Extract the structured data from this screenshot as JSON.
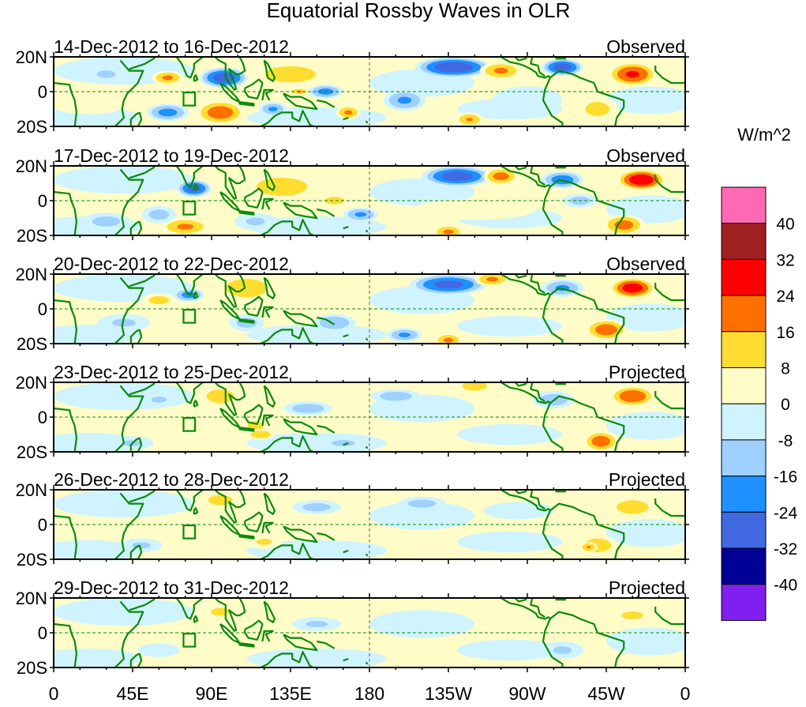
{
  "chart_data": {
    "type": "heatmap",
    "title": "Equatorial Rossby Waves in OLR",
    "units_label": "W/m^2",
    "x_ticks": [
      "0",
      "45E",
      "90E",
      "135E",
      "180",
      "135W",
      "90W",
      "45W",
      "0"
    ],
    "x_tick_lons": [
      0,
      45,
      90,
      135,
      180,
      225,
      270,
      315,
      360
    ],
    "y_ticks": [
      "20N",
      "0",
      "20S"
    ],
    "xlim": [
      0,
      360
    ],
    "ylim": [
      -20,
      20
    ],
    "colorbar": {
      "labels": [
        "40",
        "32",
        "24",
        "16",
        "8",
        "0",
        "-8",
        "-16",
        "-24",
        "-32",
        "-40"
      ],
      "levels": [
        -40,
        -32,
        -24,
        -16,
        -8,
        0,
        8,
        16,
        24,
        32,
        40
      ],
      "colors": [
        "#8020f0",
        "#000096",
        "#4169e1",
        "#1e90ff",
        "#a0d0ff",
        "#d0f4ff",
        "#fffcc8",
        "#ffdd30",
        "#ff7000",
        "#ff0000",
        "#a02020",
        "#ff69b4"
      ]
    },
    "panels": [
      {
        "date_range": "14-Dec-2012 to 16-Dec-2012",
        "status": "Observed",
        "anomalies": [
          [
            20,
            -5,
            25,
            8,
            4
          ],
          [
            65,
            8,
            9,
            4,
            18
          ],
          [
            97,
            8,
            14,
            6,
            -30
          ],
          [
            95,
            -12,
            14,
            7,
            22
          ],
          [
            135,
            10,
            25,
            8,
            12
          ],
          [
            140,
            0,
            6,
            2,
            17
          ],
          [
            168,
            -12,
            7,
            4,
            18
          ],
          [
            65,
            -12,
            12,
            5,
            -20
          ],
          [
            125,
            -10,
            8,
            4,
            -18
          ],
          [
            155,
            0,
            10,
            4,
            -20
          ],
          [
            200,
            -5,
            12,
            6,
            -18
          ],
          [
            228,
            14,
            22,
            6,
            -32
          ],
          [
            255,
            12,
            12,
            5,
            18
          ],
          [
            290,
            14,
            12,
            5,
            -30
          ],
          [
            330,
            10,
            14,
            7,
            26
          ],
          [
            237,
            -16,
            8,
            4,
            17
          ],
          [
            310,
            -10,
            12,
            7,
            12
          ],
          [
            270,
            -5,
            20,
            8,
            -6
          ],
          [
            30,
            10,
            12,
            5,
            -10
          ]
        ]
      },
      {
        "date_range": "17-Dec-2012 to 19-Dec-2012",
        "status": "Observed",
        "anomalies": [
          [
            80,
            7,
            10,
            5,
            -28
          ],
          [
            75,
            -15,
            14,
            5,
            18
          ],
          [
            130,
            8,
            25,
            9,
            12
          ],
          [
            160,
            0,
            8,
            3,
            16
          ],
          [
            60,
            -8,
            10,
            5,
            -12
          ],
          [
            175,
            -8,
            10,
            4,
            -18
          ],
          [
            230,
            14,
            20,
            6,
            -30
          ],
          [
            255,
            14,
            10,
            5,
            20
          ],
          [
            290,
            12,
            12,
            5,
            -22
          ],
          [
            335,
            12,
            14,
            6,
            32
          ],
          [
            325,
            -14,
            12,
            6,
            20
          ],
          [
            225,
            -18,
            9,
            4,
            18
          ],
          [
            240,
            -5,
            35,
            6,
            6
          ],
          [
            300,
            0,
            10,
            4,
            -12
          ],
          [
            30,
            -12,
            14,
            5,
            -12
          ],
          [
            115,
            -12,
            12,
            5,
            -10
          ]
        ]
      },
      {
        "date_range": "20-Dec-2012 to 22-Dec-2012",
        "status": "Observed",
        "anomalies": [
          [
            77,
            8,
            9,
            4,
            -20
          ],
          [
            110,
            12,
            18,
            8,
            14
          ],
          [
            110,
            -8,
            10,
            5,
            -12
          ],
          [
            225,
            14,
            22,
            6,
            -28
          ],
          [
            250,
            17,
            10,
            4,
            18
          ],
          [
            290,
            12,
            12,
            5,
            -18
          ],
          [
            330,
            12,
            13,
            6,
            30
          ],
          [
            315,
            -12,
            12,
            6,
            22
          ],
          [
            225,
            -18,
            8,
            4,
            18
          ],
          [
            200,
            -15,
            10,
            4,
            -18
          ],
          [
            160,
            -8,
            12,
            5,
            -16
          ],
          [
            40,
            -8,
            15,
            5,
            -10
          ],
          [
            60,
            5,
            10,
            4,
            12
          ]
        ]
      },
      {
        "date_range": "23-Dec-2012 to 25-Dec-2012",
        "status": "Projected",
        "anomalies": [
          [
            95,
            12,
            12,
            6,
            14
          ],
          [
            115,
            -5,
            10,
            6,
            10
          ],
          [
            118,
            -10,
            8,
            3,
            16
          ],
          [
            145,
            5,
            14,
            4,
            -14
          ],
          [
            195,
            12,
            14,
            4,
            -14
          ],
          [
            240,
            18,
            10,
            4,
            16
          ],
          [
            285,
            10,
            12,
            5,
            -14
          ],
          [
            330,
            12,
            13,
            6,
            24
          ],
          [
            312,
            -14,
            10,
            6,
            22
          ],
          [
            45,
            -15,
            12,
            4,
            -10
          ],
          [
            60,
            10,
            10,
            4,
            -10
          ],
          [
            165,
            -15,
            15,
            4,
            -10
          ]
        ]
      },
      {
        "date_range": "26-Dec-2012 to 28-Dec-2012",
        "status": "Projected",
        "anomalies": [
          [
            95,
            14,
            12,
            5,
            12
          ],
          [
            150,
            10,
            14,
            4,
            -12
          ],
          [
            210,
            12,
            14,
            4,
            -12
          ],
          [
            330,
            10,
            14,
            6,
            14
          ],
          [
            310,
            -12,
            12,
            6,
            14
          ],
          [
            305,
            -13,
            5,
            3,
            17
          ],
          [
            50,
            -12,
            12,
            4,
            -10
          ],
          [
            120,
            -10,
            10,
            4,
            10
          ],
          [
            265,
            8,
            20,
            5,
            -6
          ]
        ]
      },
      {
        "date_range": "29-Dec-2012 to 31-Dec-2012",
        "status": "Projected",
        "anomalies": [
          [
            95,
            12,
            12,
            5,
            10
          ],
          [
            150,
            5,
            14,
            4,
            -10
          ],
          [
            330,
            10,
            14,
            5,
            10
          ],
          [
            290,
            -10,
            12,
            5,
            -10
          ],
          [
            60,
            -10,
            12,
            4,
            -6
          ],
          [
            220,
            5,
            20,
            5,
            -5
          ]
        ]
      }
    ]
  }
}
